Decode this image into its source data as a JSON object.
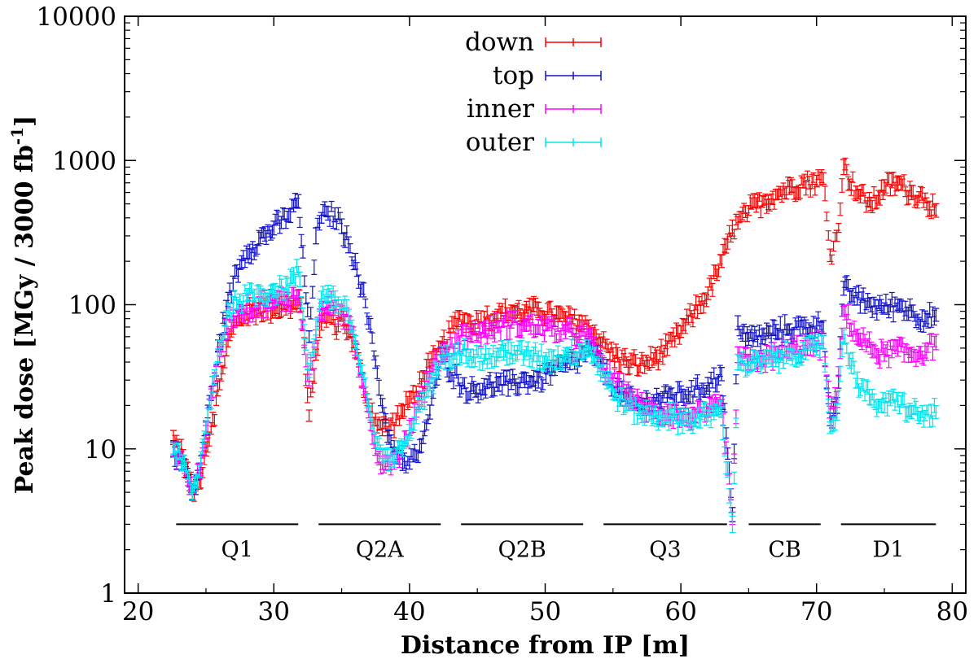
{
  "chart_data": {
    "type": "scatter",
    "xlabel": "Distance from IP [m]",
    "ylabel_parts": {
      "main": "Peak dose [MGy / 3000 fb",
      "sup": "-1",
      "end": "]"
    },
    "ylabel": "Peak dose [MGy / 3000 fb-1]",
    "xlim": [
      19,
      81
    ],
    "ylim": [
      1,
      10000
    ],
    "yscale": "log",
    "xticks": [
      20,
      30,
      40,
      50,
      60,
      70,
      80
    ],
    "xtick_labels": [
      "20",
      "30",
      "40",
      "50",
      "60",
      "70",
      "80"
    ],
    "yticks": [
      1,
      10,
      100,
      1000,
      10000
    ],
    "ytick_labels": [
      "1",
      "10",
      "100",
      "1000",
      "10000"
    ],
    "legend_position": "top-center",
    "error_bars": true,
    "grid": false,
    "regions": [
      {
        "label": "Q1",
        "x0": 22.8,
        "x1": 31.8,
        "y": 3
      },
      {
        "label": "Q2A",
        "x0": 33.3,
        "x1": 42.3,
        "y": 3
      },
      {
        "label": "Q2B",
        "x0": 43.8,
        "x1": 52.8,
        "y": 3
      },
      {
        "label": "Q3",
        "x0": 54.3,
        "x1": 63.4,
        "y": 3
      },
      {
        "label": "CB",
        "x0": 65.0,
        "x1": 70.3,
        "y": 3
      },
      {
        "label": "D1",
        "x0": 71.8,
        "x1": 78.8,
        "y": 3
      }
    ],
    "series": [
      {
        "name": "down",
        "color": "#ff0000",
        "x": [
          22.6,
          23.3,
          24.0,
          24.5,
          25.0,
          25.5,
          26.0,
          26.5,
          27.0,
          27.5,
          28.0,
          29.0,
          30.0,
          31.0,
          32.0,
          32.6,
          33.1,
          33.5,
          34.0,
          34.5,
          35.0,
          35.5,
          36.0,
          36.5,
          37.0,
          37.5,
          38.0,
          38.5,
          39.0,
          39.5,
          40.0,
          40.5,
          41.0,
          41.5,
          42.0,
          42.3,
          43.6,
          44.5,
          45.5,
          46.5,
          47.5,
          48.5,
          49.5,
          50.5,
          51.5,
          52.5,
          53.2,
          54.2,
          55.0,
          56.0,
          57.0,
          58.0,
          59.0,
          60.0,
          61.0,
          62.0,
          63.0,
          63.8,
          64.2,
          65.0,
          66.0,
          67.0,
          68.0,
          69.0,
          70.0,
          70.5,
          71.0,
          71.5,
          72.0,
          73.0,
          74.0,
          75.0,
          76.0,
          77.0,
          78.0,
          78.8
        ],
        "y": [
          12,
          9,
          5,
          6,
          10,
          16,
          28,
          50,
          70,
          82,
          88,
          92,
          95,
          98,
          100,
          17,
          45,
          75,
          85,
          70,
          85,
          65,
          48,
          30,
          20,
          16,
          14,
          14,
          16,
          18,
          22,
          25,
          32,
          38,
          45,
          50,
          80,
          75,
          80,
          85,
          90,
          88,
          92,
          85,
          80,
          75,
          70,
          55,
          45,
          40,
          38,
          42,
          50,
          65,
          90,
          120,
          200,
          340,
          370,
          450,
          520,
          580,
          650,
          700,
          720,
          750,
          220,
          300,
          900,
          600,
          500,
          650,
          700,
          600,
          550,
          450
        ]
      },
      {
        "name": "top",
        "color": "#1414c8",
        "x": [
          22.6,
          23.3,
          24.0,
          24.5,
          25.0,
          25.5,
          26.0,
          26.5,
          27.0,
          27.5,
          28.0,
          29.0,
          30.0,
          31.0,
          31.8,
          32.6,
          33.1,
          33.5,
          34.0,
          34.5,
          35.0,
          35.5,
          36.0,
          36.5,
          37.0,
          37.5,
          38.0,
          38.5,
          39.0,
          39.5,
          40.0,
          40.5,
          41.0,
          41.5,
          42.0,
          42.3,
          43.6,
          44.5,
          45.5,
          46.5,
          47.5,
          48.5,
          49.5,
          50.5,
          51.5,
          52.5,
          53.2,
          54.2,
          55.0,
          56.0,
          57.0,
          58.0,
          59.0,
          60.0,
          61.0,
          62.0,
          63.0,
          63.8,
          64.2,
          65.0,
          66.0,
          67.0,
          68.0,
          69.0,
          70.0,
          70.5,
          71.0,
          71.5,
          72.0,
          73.0,
          74.0,
          75.0,
          76.0,
          77.0,
          78.0,
          78.8
        ],
        "y": [
          10,
          8,
          5,
          7,
          14,
          28,
          55,
          95,
          140,
          190,
          230,
          290,
          340,
          410,
          520,
          60,
          300,
          400,
          430,
          420,
          350,
          260,
          200,
          130,
          75,
          40,
          20,
          12,
          9,
          8,
          8,
          9,
          12,
          18,
          30,
          45,
          30,
          25,
          27,
          28,
          28,
          30,
          30,
          35,
          38,
          42,
          50,
          38,
          28,
          22,
          20,
          22,
          23,
          24,
          25,
          28,
          33,
          3.5,
          75,
          58,
          60,
          65,
          68,
          70,
          72,
          70,
          16,
          20,
          130,
          110,
          100,
          95,
          100,
          90,
          80,
          85
        ]
      },
      {
        "name": "inner",
        "color": "#ff00ff",
        "x": [
          22.6,
          23.3,
          24.0,
          24.5,
          25.0,
          25.5,
          26.0,
          26.5,
          27.0,
          27.5,
          28.0,
          29.0,
          30.0,
          31.0,
          31.8,
          32.6,
          33.1,
          33.5,
          34.0,
          34.5,
          35.0,
          35.5,
          36.0,
          36.5,
          37.0,
          37.5,
          38.0,
          38.5,
          39.0,
          39.5,
          40.0,
          40.5,
          41.0,
          41.5,
          42.0,
          42.3,
          43.6,
          44.5,
          45.5,
          46.5,
          47.5,
          48.5,
          49.5,
          50.5,
          51.5,
          52.5,
          53.2,
          54.2,
          55.0,
          56.0,
          57.0,
          58.0,
          59.0,
          60.0,
          61.0,
          62.0,
          63.0,
          63.8,
          64.2,
          65.0,
          66.0,
          67.0,
          68.0,
          69.0,
          70.0,
          70.5,
          71.0,
          71.5,
          72.0,
          73.0,
          74.0,
          75.0,
          76.0,
          77.0,
          78.0,
          78.8
        ],
        "y": [
          10,
          8,
          5,
          7,
          13,
          25,
          45,
          70,
          85,
          92,
          95,
          100,
          105,
          110,
          115,
          30,
          60,
          90,
          100,
          95,
          90,
          75,
          50,
          30,
          18,
          10,
          8,
          8,
          9,
          10,
          14,
          18,
          25,
          32,
          40,
          45,
          60,
          62,
          65,
          70,
          75,
          72,
          70,
          68,
          65,
          62,
          60,
          40,
          30,
          25,
          20,
          18,
          18,
          17,
          17,
          18,
          20,
          3.3,
          45,
          40,
          42,
          45,
          48,
          50,
          52,
          55,
          18,
          22,
          90,
          60,
          50,
          45,
          50,
          45,
          48,
          55
        ]
      },
      {
        "name": "outer",
        "color": "#00e5ee",
        "x": [
          22.6,
          23.3,
          24.0,
          24.5,
          25.0,
          25.5,
          26.0,
          26.5,
          27.0,
          27.5,
          28.0,
          29.0,
          30.0,
          31.0,
          31.8,
          32.6,
          33.1,
          33.5,
          34.0,
          34.5,
          35.0,
          35.5,
          36.0,
          36.5,
          37.0,
          37.5,
          38.0,
          38.5,
          39.0,
          39.5,
          40.0,
          40.5,
          41.0,
          41.5,
          42.0,
          42.3,
          43.6,
          44.5,
          45.5,
          46.5,
          47.5,
          48.5,
          49.5,
          50.5,
          51.5,
          52.5,
          53.2,
          54.2,
          55.0,
          56.0,
          57.0,
          58.0,
          59.0,
          60.0,
          61.0,
          62.0,
          63.0,
          63.8,
          64.2,
          65.0,
          66.0,
          67.0,
          68.0,
          69.0,
          70.0,
          70.5,
          71.0,
          71.5,
          72.0,
          73.0,
          74.0,
          75.0,
          76.0,
          77.0,
          78.0,
          78.8
        ],
        "y": [
          10,
          8,
          5,
          7,
          14,
          28,
          50,
          80,
          100,
          110,
          115,
          120,
          125,
          135,
          170,
          35,
          70,
          110,
          120,
          110,
          100,
          85,
          55,
          35,
          20,
          12,
          9,
          8,
          9,
          10,
          13,
          17,
          22,
          28,
          35,
          40,
          50,
          45,
          42,
          45,
          48,
          45,
          44,
          42,
          45,
          48,
          50,
          35,
          25,
          20,
          18,
          17,
          17,
          16,
          16,
          17,
          18,
          3.0,
          40,
          38,
          40,
          42,
          45,
          48,
          50,
          55,
          14,
          18,
          60,
          30,
          22,
          20,
          22,
          18,
          17,
          18
        ]
      }
    ]
  }
}
